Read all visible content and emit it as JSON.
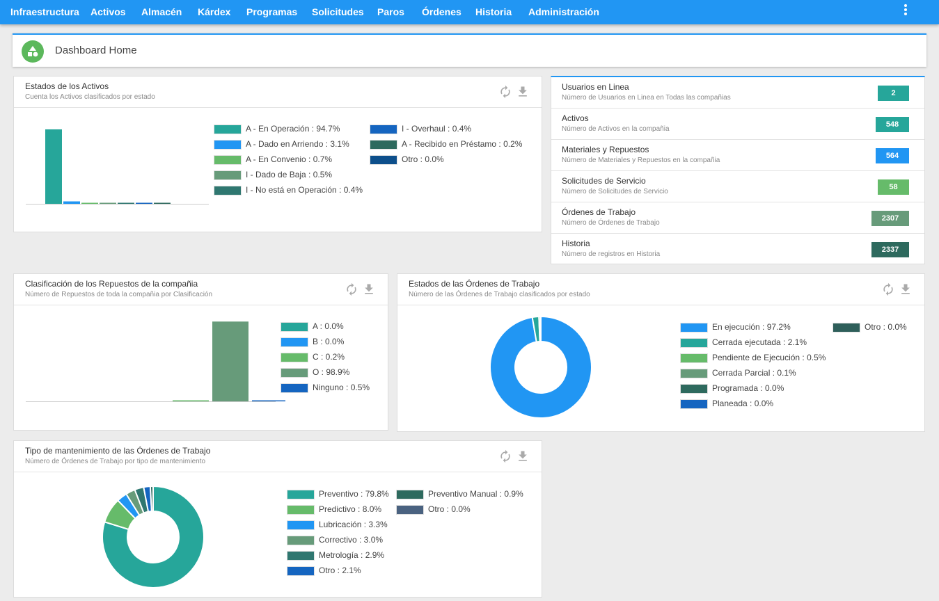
{
  "nav": {
    "items": [
      "Infraestructura",
      "Activos",
      "Almacén",
      "Kárdex",
      "Programas",
      "Solicitudes",
      "Paros",
      "Órdenes",
      "Historia",
      "Administración"
    ],
    "menu_icon": "more-vert-icon"
  },
  "header": {
    "title": "Dashboard Home",
    "logo_icon": "shapes-icon"
  },
  "icons": {
    "refresh": "refresh-icon",
    "download": "download-icon"
  },
  "cards": {
    "activos": {
      "title": "Estados de los Activos",
      "subtitle": "Cuenta los Activos clasificados por estado",
      "legend": [
        {
          "label": "A - En Operación : 94.7%",
          "color": "#26a69a"
        },
        {
          "label": "A - Dado en Arriendo : 3.1%",
          "color": "#2196f3"
        },
        {
          "label": "A - En Convenio : 0.7%",
          "color": "#66bb6a"
        },
        {
          "label": "I - Dado de Baja : 0.5%",
          "color": "#679b7a"
        },
        {
          "label": "I - No está en Operación : 0.4%",
          "color": "#2f7770"
        },
        {
          "label": "I - Overhaul : 0.4%",
          "color": "#1565c0"
        },
        {
          "label": "A - Recibido en Préstamo : 0.2%",
          "color": "#2e6a5e"
        },
        {
          "label": "Otro : 0.0%",
          "color": "#0d4f8b"
        }
      ]
    },
    "repuestos": {
      "title": "Clasificación de los Repuestos de la compañia",
      "subtitle": "Número de Repuestos de toda la compañia por Clasificación",
      "legend": [
        {
          "label": "A : 0.0%",
          "color": "#26a69a"
        },
        {
          "label": "B : 0.0%",
          "color": "#2196f3"
        },
        {
          "label": "C : 0.2%",
          "color": "#66bb6a"
        },
        {
          "label": "O : 98.9%",
          "color": "#679b7a"
        },
        {
          "label": "Ninguno : 0.5%",
          "color": "#1565c0"
        }
      ]
    },
    "ordenes": {
      "title": "Estados de las Órdenes de Trabajo",
      "subtitle": "Número de las Órdenes de Trabajo clasificados por estado",
      "legend": [
        {
          "label": "En ejecución : 97.2%",
          "color": "#2196f3"
        },
        {
          "label": "Cerrada ejecutada : 2.1%",
          "color": "#26a69a"
        },
        {
          "label": "Pendiente de Ejecución : 0.5%",
          "color": "#66bb6a"
        },
        {
          "label": "Cerrada Parcial : 0.1%",
          "color": "#679b7a"
        },
        {
          "label": "Programada : 0.0%",
          "color": "#2e6a5e"
        },
        {
          "label": "Planeada : 0.0%",
          "color": "#1565c0"
        },
        {
          "label": "Otro : 0.0%",
          "color": "#2e5f5a"
        }
      ]
    },
    "mantenimiento": {
      "title": "Tipo de mantenimiento de las Órdenes de Trabajo",
      "subtitle": "Número de Órdenes de Trabajo por tipo de mantenimiento",
      "legend": [
        {
          "label": "Preventivo : 79.8%",
          "color": "#26a69a"
        },
        {
          "label": "Predictivo : 8.0%",
          "color": "#66bb6a"
        },
        {
          "label": "Lubricación : 3.3%",
          "color": "#2196f3"
        },
        {
          "label": "Correctivo : 3.0%",
          "color": "#679b7a"
        },
        {
          "label": "Metrología : 2.9%",
          "color": "#2f7770"
        },
        {
          "label": "Otro : 2.1%",
          "color": "#1565c0"
        },
        {
          "label": "Preventivo Manual : 0.9%",
          "color": "#2e6a5e"
        },
        {
          "label": "Otro : 0.0%",
          "color": "#4a6280"
        }
      ]
    }
  },
  "stats": [
    {
      "title": "Usuarios en Linea",
      "subtitle": "Número de Usuarios en Linea en Todas las compañias",
      "value": "2",
      "color": "#26a69a"
    },
    {
      "title": "Activos",
      "subtitle": "Número de Activos en la compañia",
      "value": "548",
      "color": "#26a69a"
    },
    {
      "title": "Materiales y Repuestos",
      "subtitle": "Número de Materiales y Repuestos en la compañia",
      "value": "564",
      "color": "#2196f3"
    },
    {
      "title": "Solicitudes de Servicio",
      "subtitle": "Número de Solicitudes de Servicio",
      "value": "58",
      "color": "#66bb6a"
    },
    {
      "title": "Órdenes de Trabajo",
      "subtitle": "Número de Órdenes de Trabajo",
      "value": "2307",
      "color": "#679b7a"
    },
    {
      "title": "Historia",
      "subtitle": "Número de registros en Historia",
      "value": "2337",
      "color": "#2e6a5e"
    }
  ],
  "chart_data": [
    {
      "type": "bar",
      "title": "Estados de los Activos",
      "categories": [
        "A - En Operación",
        "A - Dado en Arriendo",
        "A - En Convenio",
        "I - Dado de Baja",
        "I - No está en Operación",
        "I - Overhaul",
        "A - Recibido en Préstamo",
        "Otro"
      ],
      "values": [
        94.7,
        3.1,
        0.7,
        0.5,
        0.4,
        0.4,
        0.2,
        0.0
      ],
      "colors": [
        "#26a69a",
        "#2196f3",
        "#66bb6a",
        "#679b7a",
        "#2f7770",
        "#1565c0",
        "#2e6a5e",
        "#0d4f8b"
      ],
      "ylim": [
        0,
        100
      ]
    },
    {
      "type": "bar",
      "title": "Clasificación de los Repuestos de la compañia",
      "categories": [
        "A",
        "B",
        "C",
        "O",
        "Ninguno"
      ],
      "values": [
        0.0,
        0.0,
        0.2,
        98.9,
        0.5
      ],
      "colors": [
        "#26a69a",
        "#2196f3",
        "#66bb6a",
        "#679b7a",
        "#1565c0"
      ],
      "ylim": [
        0,
        100
      ]
    },
    {
      "type": "pie",
      "title": "Estados de las Órdenes de Trabajo",
      "categories": [
        "En ejecución",
        "Cerrada ejecutada",
        "Pendiente de Ejecución",
        "Cerrada Parcial",
        "Programada",
        "Planeada",
        "Otro"
      ],
      "values": [
        97.2,
        2.1,
        0.5,
        0.1,
        0.0,
        0.0,
        0.0
      ],
      "colors": [
        "#2196f3",
        "#26a69a",
        "#66bb6a",
        "#679b7a",
        "#2e6a5e",
        "#1565c0",
        "#2e5f5a"
      ]
    },
    {
      "type": "pie",
      "title": "Tipo de mantenimiento de las Órdenes de Trabajo",
      "categories": [
        "Preventivo",
        "Predictivo",
        "Lubricación",
        "Correctivo",
        "Metrología",
        "Otro",
        "Preventivo Manual",
        "Otro"
      ],
      "values": [
        79.8,
        8.0,
        3.3,
        3.0,
        2.9,
        2.1,
        0.9,
        0.0
      ],
      "colors": [
        "#26a69a",
        "#66bb6a",
        "#2196f3",
        "#679b7a",
        "#2f7770",
        "#1565c0",
        "#2e6a5e",
        "#4a6280"
      ]
    }
  ]
}
